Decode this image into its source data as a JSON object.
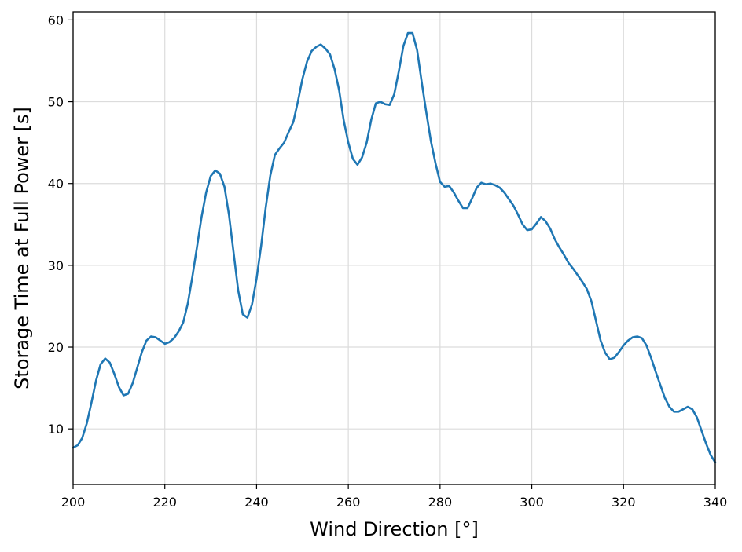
{
  "chart_data": {
    "type": "line",
    "title": "",
    "xlabel": "Wind Direction [°]",
    "ylabel": "Storage Time at Full Power [s]",
    "xlim": [
      200,
      340
    ],
    "ylim": [
      3.2,
      61
    ],
    "xticks": [
      200,
      220,
      240,
      260,
      280,
      300,
      320,
      340
    ],
    "yticks": [
      10,
      20,
      30,
      40,
      50,
      60
    ],
    "xtick_labels": [
      "200",
      "220",
      "240",
      "260",
      "280",
      "300",
      "320",
      "340"
    ],
    "ytick_labels": [
      "10",
      "20",
      "30",
      "40",
      "50",
      "60"
    ],
    "grid": true,
    "series": [
      {
        "name": "",
        "color": "#1f77b4",
        "x": [
          200,
          201,
          202,
          203,
          204,
          205,
          206,
          207,
          208,
          209,
          210,
          211,
          212,
          213,
          214,
          215,
          216,
          217,
          218,
          219,
          220,
          221,
          222,
          223,
          224,
          225,
          226,
          227,
          228,
          229,
          230,
          231,
          232,
          233,
          234,
          235,
          236,
          237,
          238,
          239,
          240,
          241,
          242,
          243,
          244,
          245,
          246,
          247,
          248,
          249,
          250,
          251,
          252,
          253,
          254,
          255,
          256,
          257,
          258,
          259,
          260,
          261,
          262,
          263,
          264,
          265,
          266,
          267,
          268,
          269,
          270,
          271,
          272,
          273,
          274,
          275,
          276,
          277,
          278,
          279,
          280,
          281,
          282,
          283,
          284,
          285,
          286,
          287,
          288,
          289,
          290,
          291,
          292,
          293,
          294,
          295,
          296,
          297,
          298,
          299,
          300,
          301,
          302,
          303,
          304,
          305,
          306,
          307,
          308,
          309,
          310,
          311,
          312,
          313,
          314,
          315,
          316,
          317,
          318,
          319,
          320,
          321,
          322,
          323,
          324,
          325,
          326,
          327,
          328,
          329,
          330,
          331,
          332,
          333,
          334,
          335,
          336,
          337,
          338,
          339,
          340
        ],
        "y": [
          7.7,
          8.0,
          8.9,
          10.7,
          13.2,
          15.9,
          17.9,
          18.6,
          18.1,
          16.7,
          15.1,
          14.1,
          14.3,
          15.6,
          17.5,
          19.4,
          20.8,
          21.3,
          21.2,
          20.8,
          20.4,
          20.6,
          21.1,
          21.9,
          23.0,
          25.3,
          28.6,
          32.2,
          35.9,
          38.9,
          40.9,
          41.6,
          41.2,
          39.6,
          36.1,
          31.5,
          26.9,
          24.0,
          23.6,
          25.2,
          28.4,
          32.4,
          37.1,
          41.0,
          43.5,
          44.3,
          45.0,
          46.3,
          47.5,
          50.0,
          52.8,
          54.9,
          56.2,
          56.7,
          57.0,
          56.5,
          55.8,
          54.0,
          51.4,
          47.7,
          45.0,
          43.0,
          42.3,
          43.2,
          45.0,
          47.8,
          49.8,
          50.0,
          49.7,
          49.6,
          50.9,
          53.7,
          56.8,
          58.4,
          58.4,
          56.3,
          52.4,
          48.7,
          45.2,
          42.5,
          40.2,
          39.6,
          39.7,
          38.9,
          37.9,
          37.0,
          37.0,
          38.2,
          39.5,
          40.1,
          39.9,
          40.0,
          39.8,
          39.5,
          38.9,
          38.1,
          37.3,
          36.2,
          35.0,
          34.3,
          34.4,
          35.1,
          35.9,
          35.4,
          34.5,
          33.2,
          32.2,
          31.3,
          30.3,
          29.6,
          28.8,
          28.0,
          27.1,
          25.6,
          23.2,
          20.8,
          19.3,
          18.5,
          18.7,
          19.4,
          20.2,
          20.8,
          21.2,
          21.3,
          21.1,
          20.2,
          18.7,
          17.0,
          15.4,
          13.8,
          12.7,
          12.1,
          12.1,
          12.4,
          12.7,
          12.4,
          11.4,
          9.8,
          8.2,
          6.8,
          5.9
        ]
      }
    ]
  }
}
